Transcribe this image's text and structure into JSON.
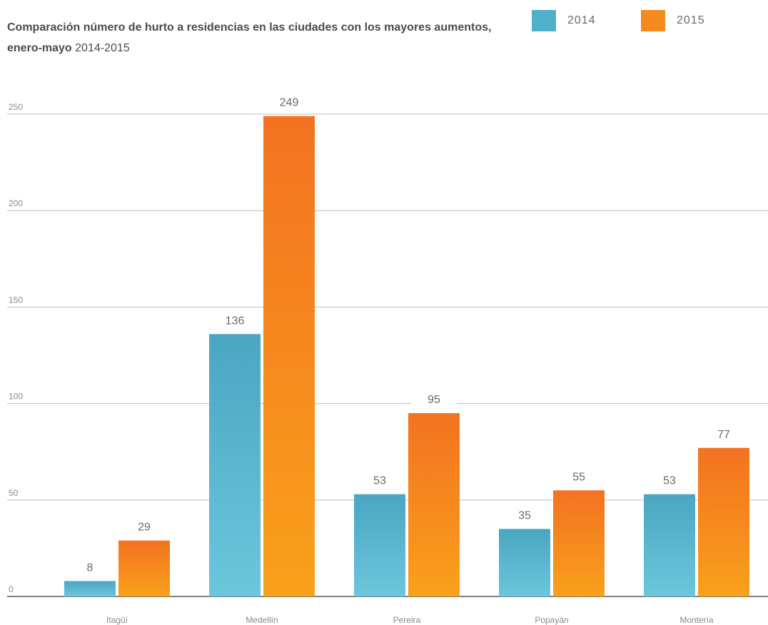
{
  "chart_data": {
    "type": "bar",
    "title_bold": "Comparación número de hurto a residencias en las ciudades con los mayores aumentos, enero-mayo",
    "title_years": "2014-2015",
    "categories": [
      "Itagüí",
      "Medellín",
      "Pereira",
      "Popayán",
      "Montería"
    ],
    "series": [
      {
        "name": "2014",
        "color": "#4fb0c9",
        "values": [
          8,
          136,
          53,
          35,
          53
        ]
      },
      {
        "name": "2015",
        "color": "#f58a1f",
        "values": [
          29,
          249,
          95,
          55,
          77
        ]
      }
    ],
    "yticks": [
      0,
      50,
      100,
      150,
      200,
      250
    ],
    "ylim": [
      0,
      250
    ],
    "grid": true,
    "legend_position": "top-right"
  }
}
